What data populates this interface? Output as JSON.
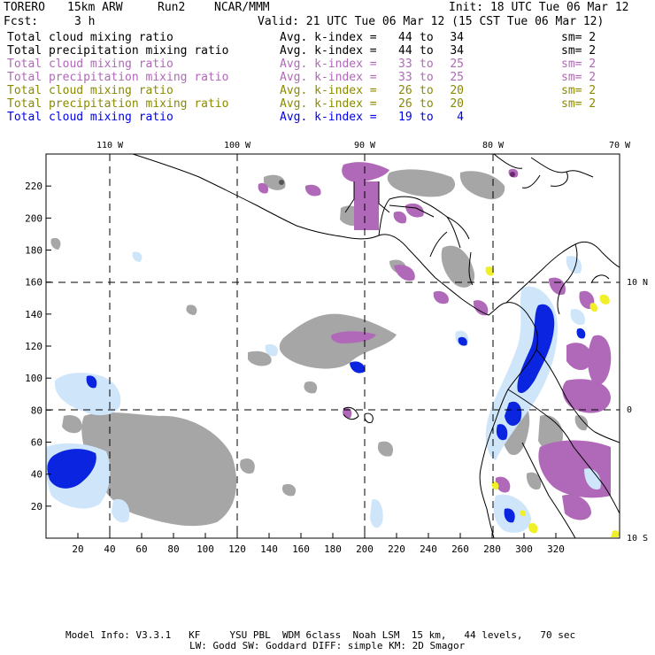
{
  "header": {
    "model": "TORERO",
    "res": "15km ARW",
    "run": "Run2",
    "org": "NCAR/MMM",
    "init": "Init: 18 UTC Tue 06 Mar 12",
    "fcst": "Fcst:",
    "fcst_hours": "3 h",
    "valid": "Valid: 21 UTC Tue 06 Mar 12 (15 CST Tue 06 Mar 12)"
  },
  "legend": [
    {
      "field": "Total cloud mixing ratio",
      "kidx": "Avg. k-index =",
      "a": "44",
      "to": "to",
      "b": "34",
      "sm": "sm= 2",
      "color": "#000000"
    },
    {
      "field": "Total precipitation mixing ratio",
      "kidx": "Avg. k-index =",
      "a": "44",
      "to": "to",
      "b": "34",
      "sm": "sm= 2",
      "color": "#000000"
    },
    {
      "field": "Total cloud mixing ratio",
      "kidx": "Avg. k-index =",
      "a": "33",
      "to": "to",
      "b": "25",
      "sm": "sm= 2",
      "color": "#b068b8"
    },
    {
      "field": "Total precipitation mixing ratio",
      "kidx": "Avg. k-index =",
      "a": "33",
      "to": "to",
      "b": "25",
      "sm": "sm= 2",
      "color": "#b068b8"
    },
    {
      "field": "Total cloud mixing ratio",
      "kidx": "Avg. k-index =",
      "a": "26",
      "to": "to",
      "b": "20",
      "sm": "sm= 2",
      "color": "#8a8a00"
    },
    {
      "field": "Total precipitation mixing ratio",
      "kidx": "Avg. k-index =",
      "a": "26",
      "to": "to",
      "b": "20",
      "sm": "sm= 2",
      "color": "#8a8a00"
    },
    {
      "field": "Total cloud mixing ratio",
      "kidx": "Avg. k-index =",
      "a": "19",
      "to": "to",
      "b": "4",
      "sm": "",
      "color": "#0000ee"
    }
  ],
  "map": {
    "lon_labels": [
      "110 W",
      "100 W",
      "90 W",
      "80 W",
      "70 W"
    ],
    "lat_labels": [
      "10 N",
      "0",
      "10 S"
    ],
    "x_ticks": [
      "20",
      "40",
      "60",
      "80",
      "100",
      "120",
      "140",
      "160",
      "180",
      "200",
      "220",
      "240",
      "260",
      "280",
      "300",
      "320"
    ],
    "y_ticks": [
      "220",
      "200",
      "180",
      "160",
      "140",
      "120",
      "100",
      "80",
      "60",
      "40",
      "20"
    ],
    "colors": {
      "gray": "#a6a6a6",
      "purple": "#b068b8",
      "lightblue": "#cfe6fa",
      "blue": "#0a24e0",
      "yellow": "#f0f028"
    }
  },
  "footer": {
    "line1": "Model Info: V3.3.1   KF     YSU PBL  WDM 6class  Noah LSM  15 km,   44 levels,   70 sec",
    "line2": "LW: Godd SW: Goddard DIFF: simple KM: 2D Smagor"
  }
}
